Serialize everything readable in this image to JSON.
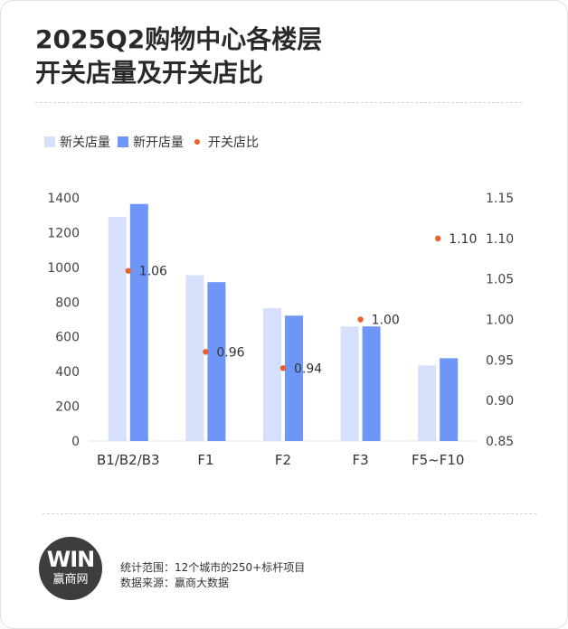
{
  "title_lines": [
    "2025Q2购物中心各楼层",
    "开关店量及开关店比"
  ],
  "legend": [
    {
      "label": "新关店量",
      "kind": "bar",
      "color": "#d6e0fb"
    },
    {
      "label": "新开店量",
      "kind": "bar",
      "color": "#6d96f6"
    },
    {
      "label": "开关店比",
      "kind": "dot",
      "color": "#e8612c"
    }
  ],
  "chart_data": {
    "type": "bar",
    "categories": [
      "B1/B2/B3",
      "F1",
      "F2",
      "F3",
      "F5~F10"
    ],
    "series": [
      {
        "name": "新关店量",
        "type": "bar",
        "axis": "left",
        "color": "#d6e0fb",
        "values": [
          1290,
          955,
          765,
          660,
          435
        ]
      },
      {
        "name": "新开店量",
        "type": "bar",
        "axis": "left",
        "color": "#6d96f6",
        "values": [
          1365,
          915,
          722,
          660,
          477
        ]
      },
      {
        "name": "开关店比",
        "type": "scatter",
        "axis": "right",
        "color": "#e8612c",
        "values": [
          1.06,
          0.96,
          0.94,
          1.0,
          1.1
        ],
        "labels": [
          "1.06",
          "0.96",
          "0.94",
          "1.00",
          "1.10"
        ]
      }
    ],
    "ylim": [
      0,
      1400
    ],
    "yticks": [
      "0",
      "200",
      "400",
      "600",
      "800",
      "1000",
      "1200",
      "1400"
    ],
    "y2lim": [
      0.85,
      1.15
    ],
    "y2ticks": [
      "0.85",
      "0.90",
      "0.95",
      "1.00",
      "1.05",
      "1.10",
      "1.15"
    ],
    "grid": false,
    "legend_position": "top-left"
  },
  "footer": {
    "logo_mark": "WIN",
    "logo_name": "赢商网",
    "scope": "统计范围：12个城市的250+标杆项目",
    "source": "数据来源：赢商大数据"
  }
}
